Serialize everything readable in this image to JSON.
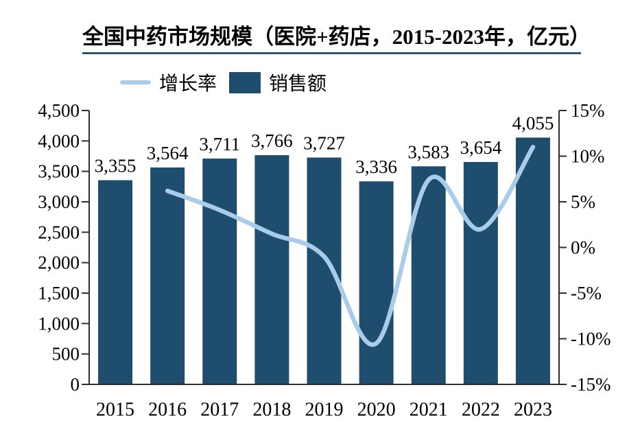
{
  "title": {
    "text": "全国中药市场规模（医院+药店，2015-2023年，亿元）"
  },
  "legend": {
    "items": [
      {
        "label": "增长率",
        "swatch": "line",
        "color": "#a8cce9"
      },
      {
        "label": "销售额",
        "swatch": "bar",
        "color": "#1e4d6e"
      }
    ]
  },
  "chart_data": {
    "type": "bar",
    "subtype": "combo bar + smooth line, dual y-axis",
    "title": "全国中药市场规模（医院+药店，2015-2023年，亿元）",
    "categories": [
      "2015",
      "2016",
      "2017",
      "2018",
      "2019",
      "2020",
      "2021",
      "2022",
      "2023"
    ],
    "series": [
      {
        "name": "销售额",
        "type": "bar",
        "axis": "left",
        "color": "#1e4d6e",
        "values": [
          3355,
          3564,
          3711,
          3766,
          3727,
          3336,
          3583,
          3654,
          4055
        ],
        "data_labels": [
          "3,355",
          "3,564",
          "3,711",
          "3,766",
          "3,727",
          "3,336",
          "3,583",
          "3,654",
          "4,055"
        ]
      },
      {
        "name": "增长率",
        "type": "line",
        "axis": "right",
        "color": "#a8cce9",
        "values": [
          null,
          6.2,
          4.1,
          1.5,
          -1.0,
          -10.5,
          7.4,
          2.0,
          11.0
        ]
      }
    ],
    "left_axis": {
      "min": 0,
      "max": 4500,
      "step": 500,
      "labels": [
        "0",
        "500",
        "1,000",
        "1,500",
        "2,000",
        "2,500",
        "3,000",
        "3,500",
        "4,000",
        "4,500"
      ]
    },
    "right_axis": {
      "min": -15,
      "max": 15,
      "step": 5,
      "labels": [
        "-15%",
        "-10%",
        "-5%",
        "0%",
        "5%",
        "10%",
        "15%"
      ]
    },
    "grid": false,
    "legend_position": "top-left"
  },
  "colors": {
    "bar_fill": "#1e4d6e",
    "line_stroke": "#a8cce9",
    "axis": "#2e2e2e",
    "text": "#000000",
    "title_underline": "#2f566b",
    "background": "#ffffff"
  }
}
